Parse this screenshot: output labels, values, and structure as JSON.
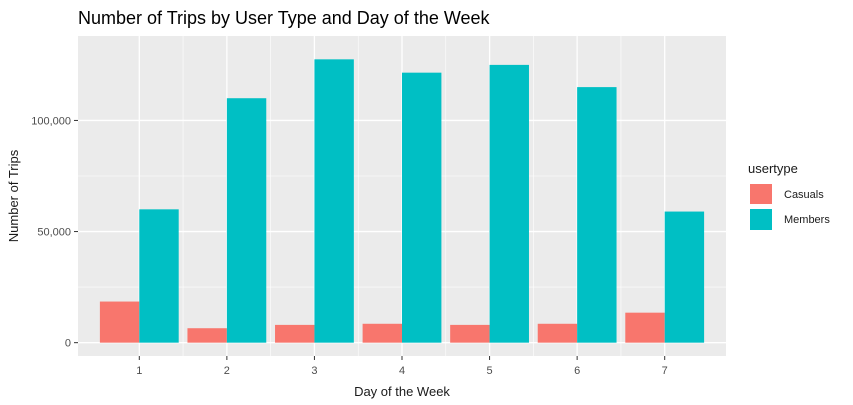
{
  "chart_data": {
    "type": "bar",
    "title": "Number of Trips by User Type and Day of the Week",
    "xlabel": "Day of the Week",
    "ylabel": "Number of Trips",
    "categories": [
      "1",
      "2",
      "3",
      "4",
      "5",
      "6",
      "7"
    ],
    "series": [
      {
        "name": "Casuals",
        "color": "#F8766D",
        "values": [
          18500,
          6500,
          8000,
          8500,
          8000,
          8500,
          13500
        ]
      },
      {
        "name": "Members",
        "color": "#00BFC4",
        "values": [
          60000,
          110000,
          127500,
          121500,
          125000,
          115000,
          59000
        ]
      }
    ],
    "ylim": [
      -6000,
      138000
    ],
    "yticks": [
      0,
      50000,
      100000
    ],
    "ytick_labels": [
      "0",
      "50,000",
      "100,000"
    ],
    "grid": true,
    "panel_background": "#EBEBEB",
    "grid_color": "#FFFFFF",
    "legend": {
      "title": "usertype",
      "position": "right"
    }
  }
}
